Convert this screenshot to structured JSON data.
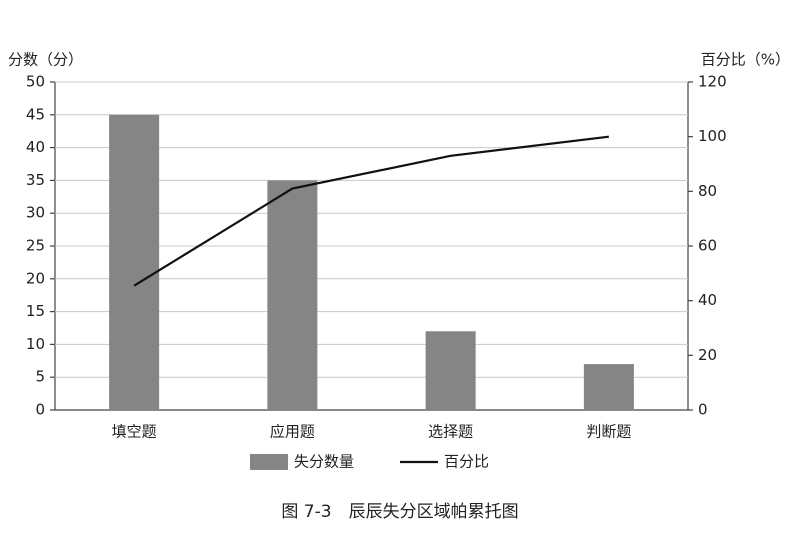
{
  "chart_data": {
    "type": "bar",
    "y_label": "分数（分）",
    "y2_label": "百分比（%）",
    "caption": "图 7-3　辰辰失分区域帕累托图",
    "categories": [
      "填空题",
      "应用题",
      "选择题",
      "判断题"
    ],
    "series": [
      {
        "name": "失分数量",
        "type": "bar",
        "color": "#858585",
        "values": [
          45,
          35,
          12,
          7
        ]
      },
      {
        "name": "百分比",
        "type": "line",
        "axis": "y2",
        "color": "#111111",
        "values": [
          45.5,
          81,
          93,
          100
        ]
      }
    ],
    "ylim": [
      0,
      50
    ],
    "yticks": [
      0,
      5,
      10,
      15,
      20,
      25,
      30,
      35,
      40,
      45,
      50
    ],
    "y2lim": [
      0,
      120
    ],
    "y2ticks": [
      0,
      20,
      40,
      60,
      80,
      100,
      120
    ],
    "grid": true
  }
}
